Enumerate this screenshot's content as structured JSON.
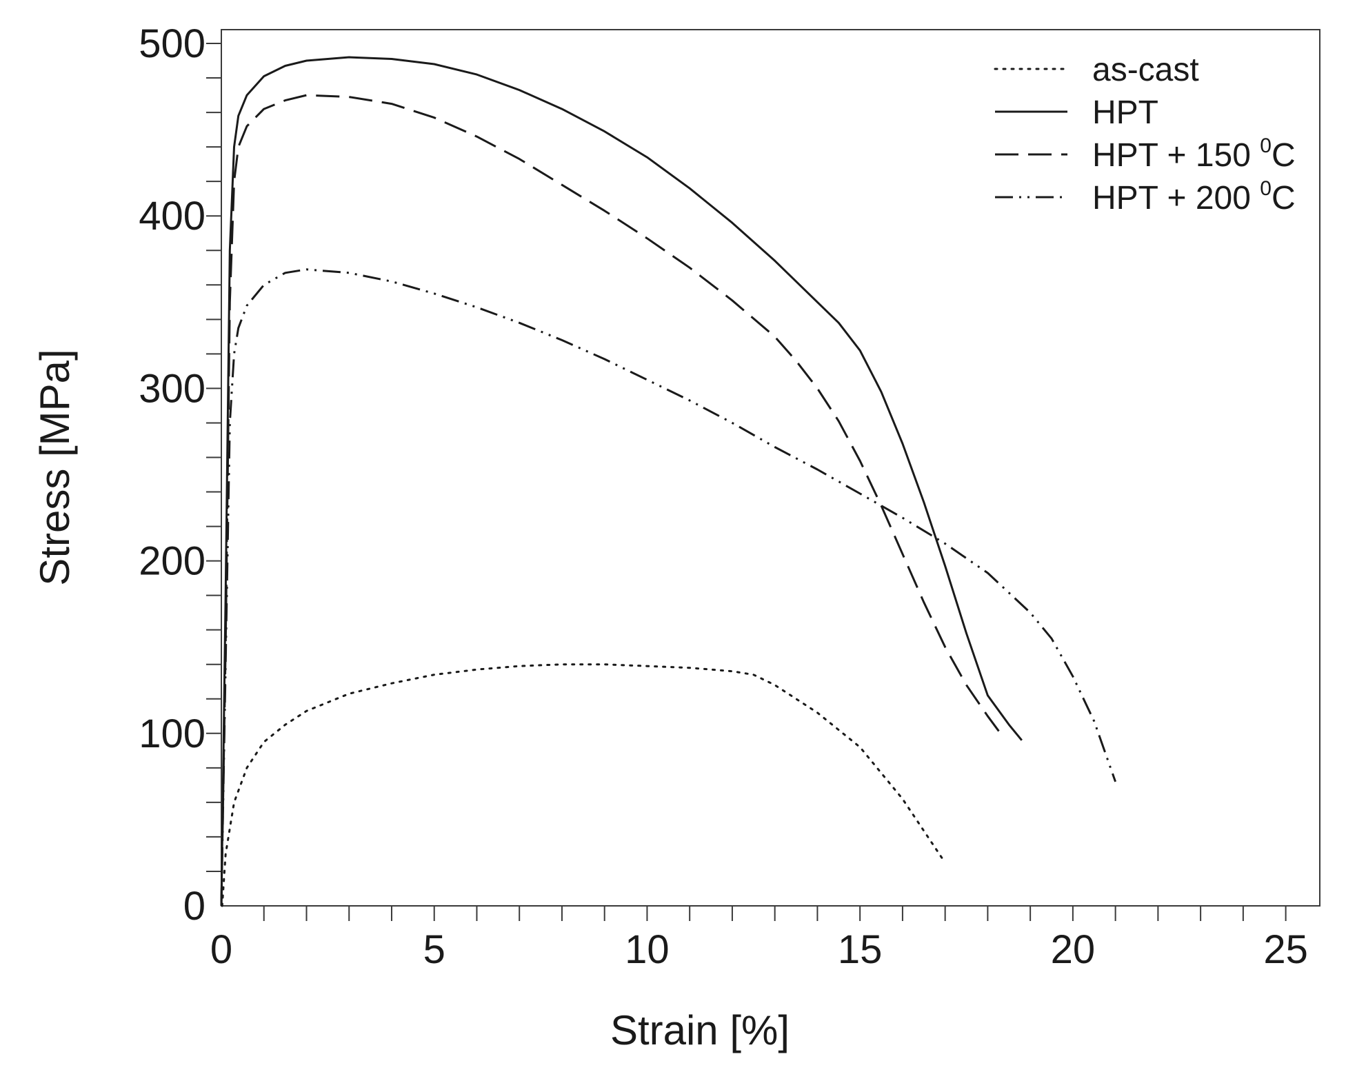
{
  "chart_data": {
    "type": "line",
    "title": "",
    "xlabel": "Strain [%]",
    "ylabel": "Stress [MPa]",
    "xlim": [
      0,
      25.8
    ],
    "ylim": [
      0,
      508
    ],
    "x_ticks": [
      0,
      5,
      10,
      15,
      20,
      25
    ],
    "y_ticks": [
      0,
      100,
      200,
      300,
      400,
      500
    ],
    "x_minor_step": 1,
    "y_minor_step": 20,
    "grid": false,
    "legend_position": "top-right",
    "series": [
      {
        "name": "as-cast",
        "style": "dotted",
        "label_main": "as-cast",
        "label_sup": "",
        "label_tail": "",
        "x": [
          0.02,
          0.1,
          0.3,
          0.6,
          1.0,
          1.5,
          2.0,
          3.0,
          4.0,
          5.0,
          6.0,
          7.0,
          8.0,
          9.0,
          10.0,
          11.0,
          12.0,
          12.5,
          13.0,
          14.0,
          15.0,
          16.0,
          17.0
        ],
        "y": [
          0,
          30,
          60,
          80,
          95,
          105,
          113,
          123,
          129,
          134,
          137,
          139,
          140,
          140,
          139,
          138,
          136,
          134,
          128,
          112,
          92,
          62,
          25
        ]
      },
      {
        "name": "HPT",
        "style": "solid",
        "label_main": "HPT",
        "label_sup": "",
        "label_tail": "",
        "x": [
          0,
          0.1,
          0.2,
          0.3,
          0.4,
          0.6,
          1.0,
          1.5,
          2.0,
          3.0,
          4.0,
          5.0,
          6.0,
          7.0,
          8.0,
          9.0,
          10.0,
          11.0,
          12.0,
          13.0,
          14.0,
          14.5,
          15.0,
          15.5,
          16.0,
          16.5,
          17.0,
          17.5,
          18.0,
          18.5,
          18.8
        ],
        "y": [
          0,
          180,
          380,
          440,
          458,
          470,
          481,
          487,
          490,
          492,
          491,
          488,
          482,
          473,
          462,
          449,
          434,
          416,
          396,
          374,
          350,
          338,
          322,
          298,
          268,
          234,
          197,
          158,
          122,
          105,
          96
        ]
      },
      {
        "name": "HPT + 150 °C",
        "style": "dashed",
        "label_main": "HPT + 150 ",
        "label_sup": "0",
        "label_tail": "C",
        "x": [
          0,
          0.1,
          0.2,
          0.3,
          0.4,
          0.6,
          1.0,
          1.5,
          2.0,
          3.0,
          4.0,
          5.0,
          6.0,
          7.0,
          8.0,
          9.0,
          10.0,
          11.0,
          12.0,
          13.0,
          13.5,
          14.0,
          14.5,
          15.0,
          15.5,
          16.0,
          16.5,
          17.0,
          17.5,
          18.0,
          18.3
        ],
        "y": [
          0,
          150,
          350,
          420,
          440,
          452,
          462,
          467,
          470,
          469,
          465,
          457,
          446,
          433,
          418,
          403,
          387,
          370,
          351,
          330,
          316,
          300,
          281,
          258,
          232,
          204,
          176,
          150,
          128,
          110,
          100
        ]
      },
      {
        "name": "HPT + 200 °C",
        "style": "dash-dot-dot",
        "label_main": "HPT + 200 ",
        "label_sup": "0",
        "label_tail": "C",
        "x": [
          0,
          0.1,
          0.2,
          0.3,
          0.4,
          0.6,
          1.0,
          1.5,
          2.0,
          3.0,
          4.0,
          5.0,
          6.0,
          7.0,
          8.0,
          9.0,
          10.0,
          11.0,
          12.0,
          13.0,
          14.0,
          15.0,
          16.0,
          17.0,
          18.0,
          19.0,
          19.5,
          20.0,
          20.5,
          21.0
        ],
        "y": [
          0,
          140,
          280,
          320,
          335,
          348,
          360,
          367,
          369,
          367,
          362,
          355,
          347,
          338,
          328,
          317,
          305,
          293,
          280,
          266,
          253,
          239,
          225,
          210,
          193,
          170,
          155,
          133,
          107,
          72
        ]
      }
    ]
  }
}
